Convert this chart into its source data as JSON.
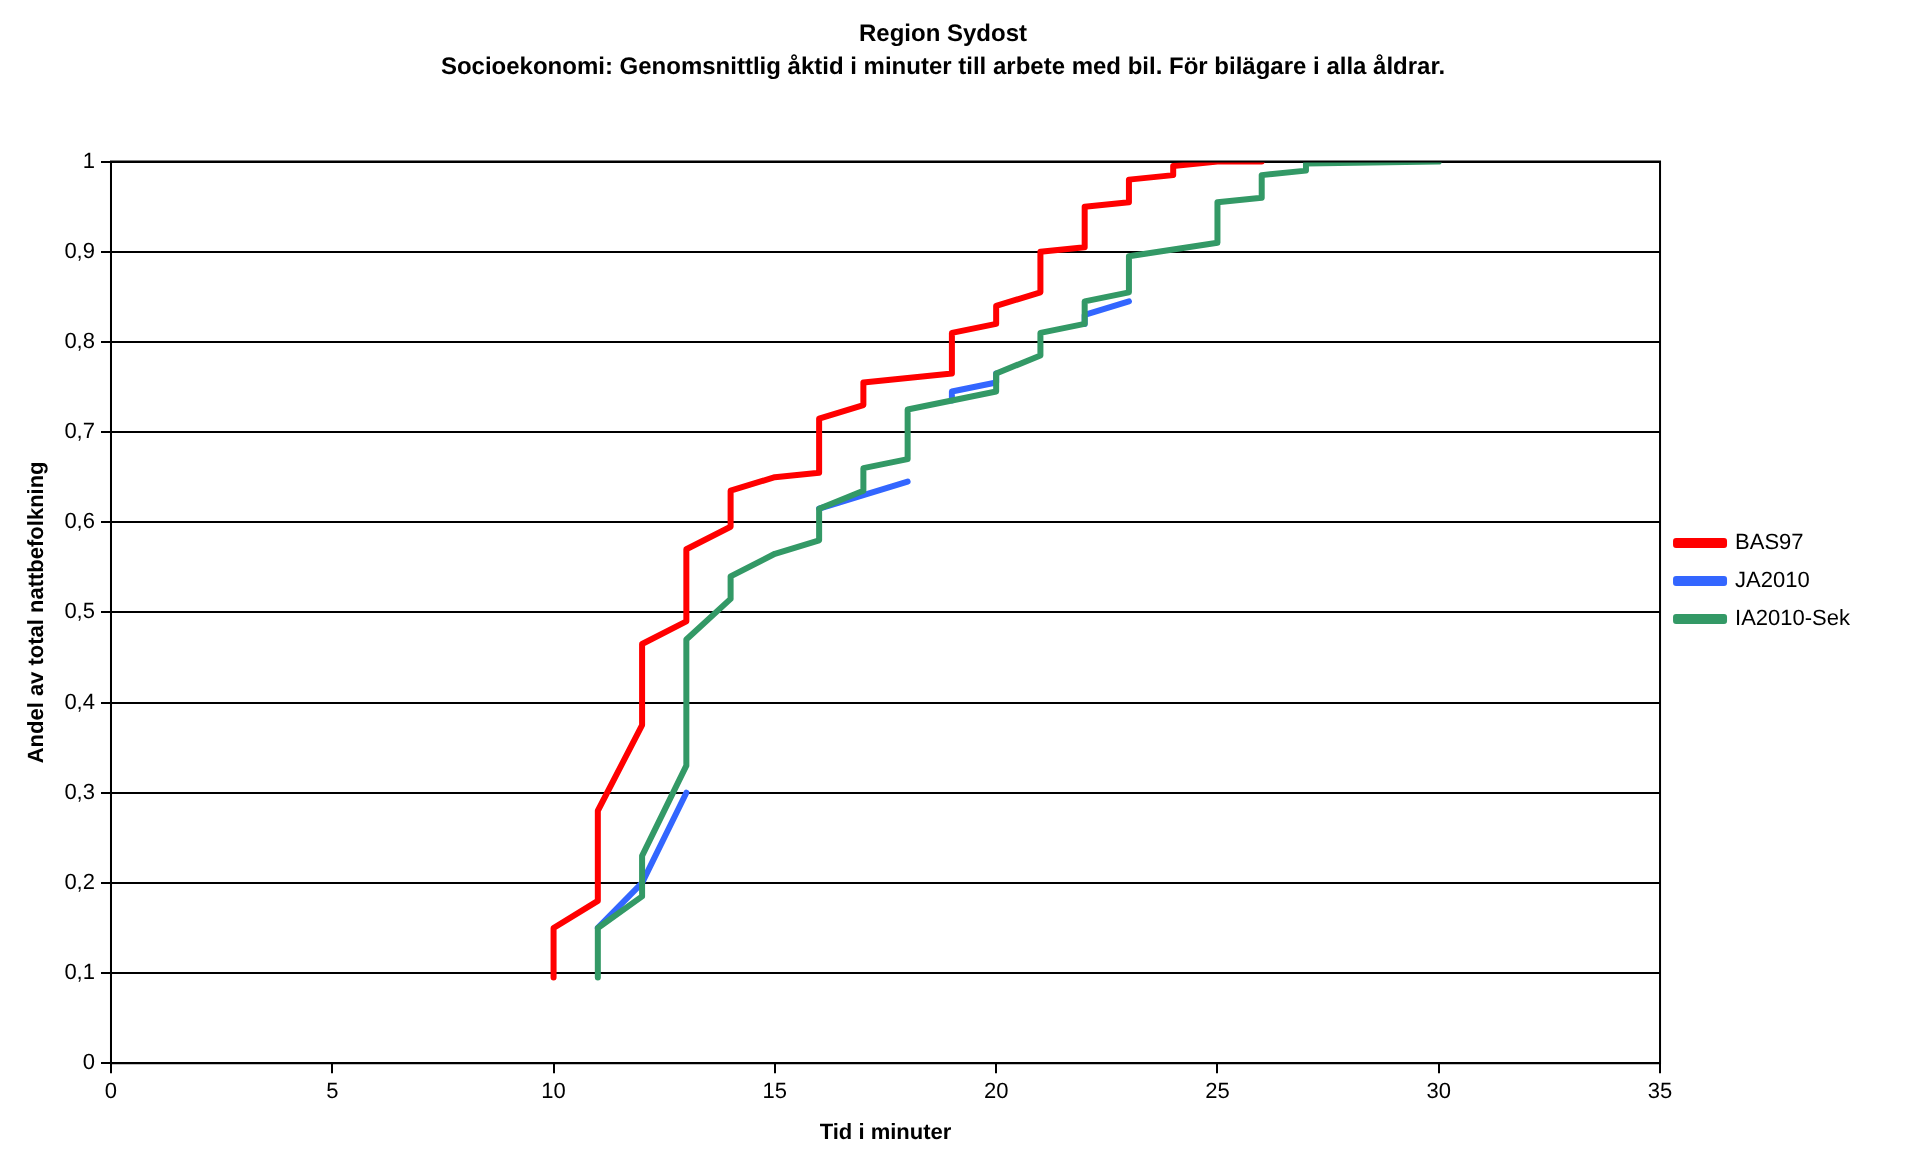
{
  "chart_data": {
    "type": "line",
    "title": "Region Sydost",
    "subtitle": "Socioekonomi: Genomsnittlig åktid i minuter till arbete med bil. För bilägare i alla åldrar.",
    "xlabel": "Tid i minuter",
    "ylabel": "Andel av total nattbefolkning",
    "xlim": [
      0,
      35
    ],
    "xticks": [
      0,
      5,
      10,
      15,
      20,
      25,
      30,
      35
    ],
    "ylim": [
      0,
      1
    ],
    "yticks": [
      0,
      {
        "value": 0.1,
        "label": "0,1"
      },
      {
        "value": 0.2,
        "label": "0,2"
      },
      {
        "value": 0.3,
        "label": "0,3"
      },
      {
        "value": 0.4,
        "label": "0,4"
      },
      {
        "value": 0.5,
        "label": "0,5"
      },
      {
        "value": 0.6,
        "label": "0,6"
      },
      {
        "value": 0.7,
        "label": "0,7"
      },
      {
        "value": 0.8,
        "label": "0,8"
      },
      {
        "value": 0.9,
        "label": "0,9"
      },
      1
    ],
    "grid": "y",
    "legend": "right",
    "marker": "none",
    "line_style": "solid",
    "series": [
      {
        "name": "BAS97",
        "color": "#ff0000",
        "x": [
          10,
          10,
          11,
          11,
          12,
          12,
          13,
          13,
          14,
          14,
          15,
          16,
          16,
          17,
          17,
          19,
          19,
          20,
          20,
          21,
          21,
          22,
          22,
          23,
          23,
          24,
          24,
          25,
          26
        ],
        "values": [
          0.095,
          0.15,
          0.18,
          0.28,
          0.375,
          0.465,
          0.49,
          0.57,
          0.595,
          0.635,
          0.65,
          0.655,
          0.715,
          0.73,
          0.755,
          0.765,
          0.81,
          0.82,
          0.84,
          0.855,
          0.9,
          0.905,
          0.95,
          0.955,
          0.98,
          0.985,
          0.995,
          1.0,
          1.0
        ]
      },
      {
        "name": "JA2010",
        "color": "#3366ff",
        "x": [
          11,
          12,
          13,
          null,
          16,
          17,
          18,
          null,
          19,
          19,
          20,
          20,
          null,
          22,
          22,
          23
        ],
        "values": [
          0.15,
          0.2,
          0.3,
          null,
          0.615,
          0.63,
          0.645,
          null,
          0.735,
          0.745,
          0.755,
          0.765,
          null,
          0.82,
          0.83,
          0.845
        ]
      },
      {
        "name": "IA2010-Sek",
        "color": "#339966",
        "x": [
          11,
          11,
          12,
          12,
          13,
          13,
          14,
          14,
          15,
          16,
          16,
          17,
          17,
          18,
          18,
          19,
          20,
          20,
          21,
          21,
          22,
          22,
          23,
          23,
          25,
          25,
          26,
          26,
          27,
          27,
          30
        ],
        "values": [
          0.095,
          0.15,
          0.185,
          0.23,
          0.33,
          0.47,
          0.515,
          0.54,
          0.565,
          0.58,
          0.615,
          0.635,
          0.66,
          0.67,
          0.725,
          0.735,
          0.745,
          0.765,
          0.785,
          0.81,
          0.82,
          0.845,
          0.855,
          0.895,
          0.91,
          0.955,
          0.96,
          0.985,
          0.99,
          0.998,
          1.0
        ]
      }
    ]
  }
}
